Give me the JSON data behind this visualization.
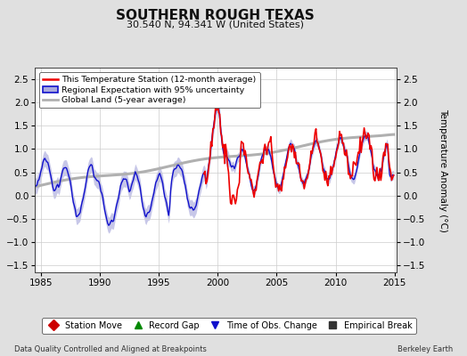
{
  "title": "SOUTHERN ROUGH TEXAS",
  "subtitle": "30.540 N, 94.341 W (United States)",
  "ylabel": "Temperature Anomaly (°C)",
  "xlabel_left": "Data Quality Controlled and Aligned at Breakpoints",
  "xlabel_right": "Berkeley Earth",
  "xlim": [
    1984.5,
    2015.2
  ],
  "ylim": [
    -1.65,
    2.75
  ],
  "yticks": [
    -1.5,
    -1.0,
    -0.5,
    0.0,
    0.5,
    1.0,
    1.5,
    2.0,
    2.5
  ],
  "xticks": [
    1985,
    1990,
    1995,
    2000,
    2005,
    2010,
    2015
  ],
  "legend1_labels": [
    "This Temperature Station (12-month average)",
    "Regional Expectation with 95% uncertainty",
    "Global Land (5-year average)"
  ],
  "legend2_labels": [
    "Station Move",
    "Record Gap",
    "Time of Obs. Change",
    "Empirical Break"
  ],
  "legend2_colors": [
    "#cc0000",
    "#008800",
    "#1111cc",
    "#333333"
  ],
  "legend2_markers": [
    "D",
    "^",
    "v",
    "s"
  ],
  "bg_color": "#e0e0e0",
  "plot_bg_color": "#ffffff",
  "grid_color": "#cccccc",
  "red_line_color": "#ee0000",
  "blue_line_color": "#1111cc",
  "blue_fill_color": "#aaaadd",
  "gray_line_color": "#b0b0b0",
  "title_fontsize": 11,
  "subtitle_fontsize": 8,
  "tick_fontsize": 7.5,
  "ylabel_fontsize": 7.5,
  "legend1_fontsize": 6.8,
  "legend2_fontsize": 7.0,
  "footer_fontsize": 6.0
}
